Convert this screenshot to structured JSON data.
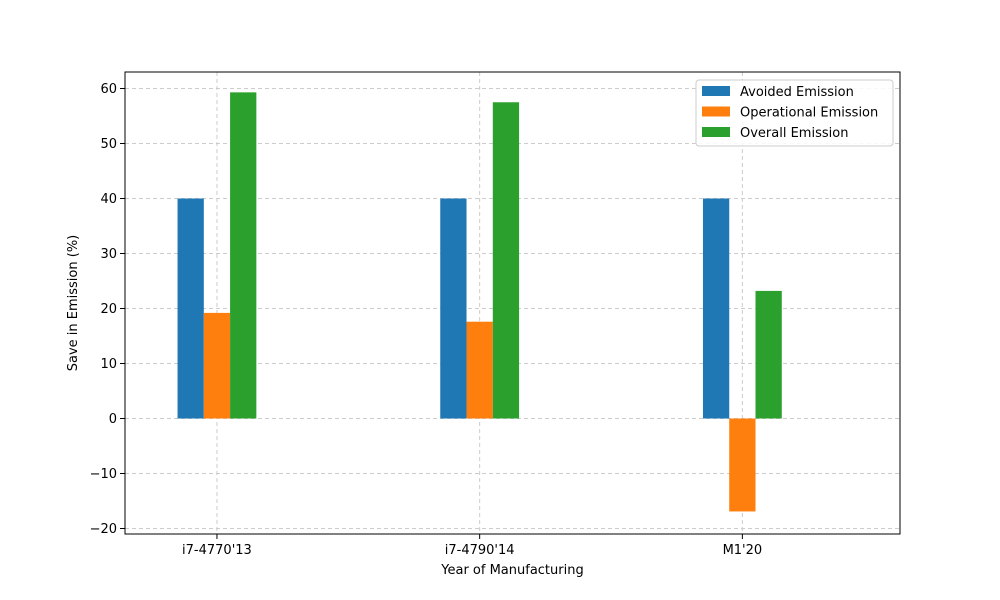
{
  "chart_data": {
    "type": "bar",
    "title": "",
    "xlabel": "Year of Manufacturing",
    "ylabel": "Save in Emission (%)",
    "categories": [
      "i7-4770'13",
      "i7-4790'14",
      "M1'20"
    ],
    "series": [
      {
        "name": "Avoided Emission",
        "color": "#1f77b4",
        "values": [
          40,
          40,
          40
        ]
      },
      {
        "name": "Operational Emission",
        "color": "#ff7f0e",
        "values": [
          19.2,
          17.6,
          -16.9
        ]
      },
      {
        "name": "Overall Emission",
        "color": "#2ca02c",
        "values": [
          59.3,
          57.5,
          23.2
        ]
      }
    ],
    "ylim": [
      -21,
      63
    ],
    "yticks": [
      -20,
      -10,
      0,
      10,
      20,
      30,
      40,
      50,
      60
    ],
    "grid": true,
    "legend_position": "upper right"
  }
}
